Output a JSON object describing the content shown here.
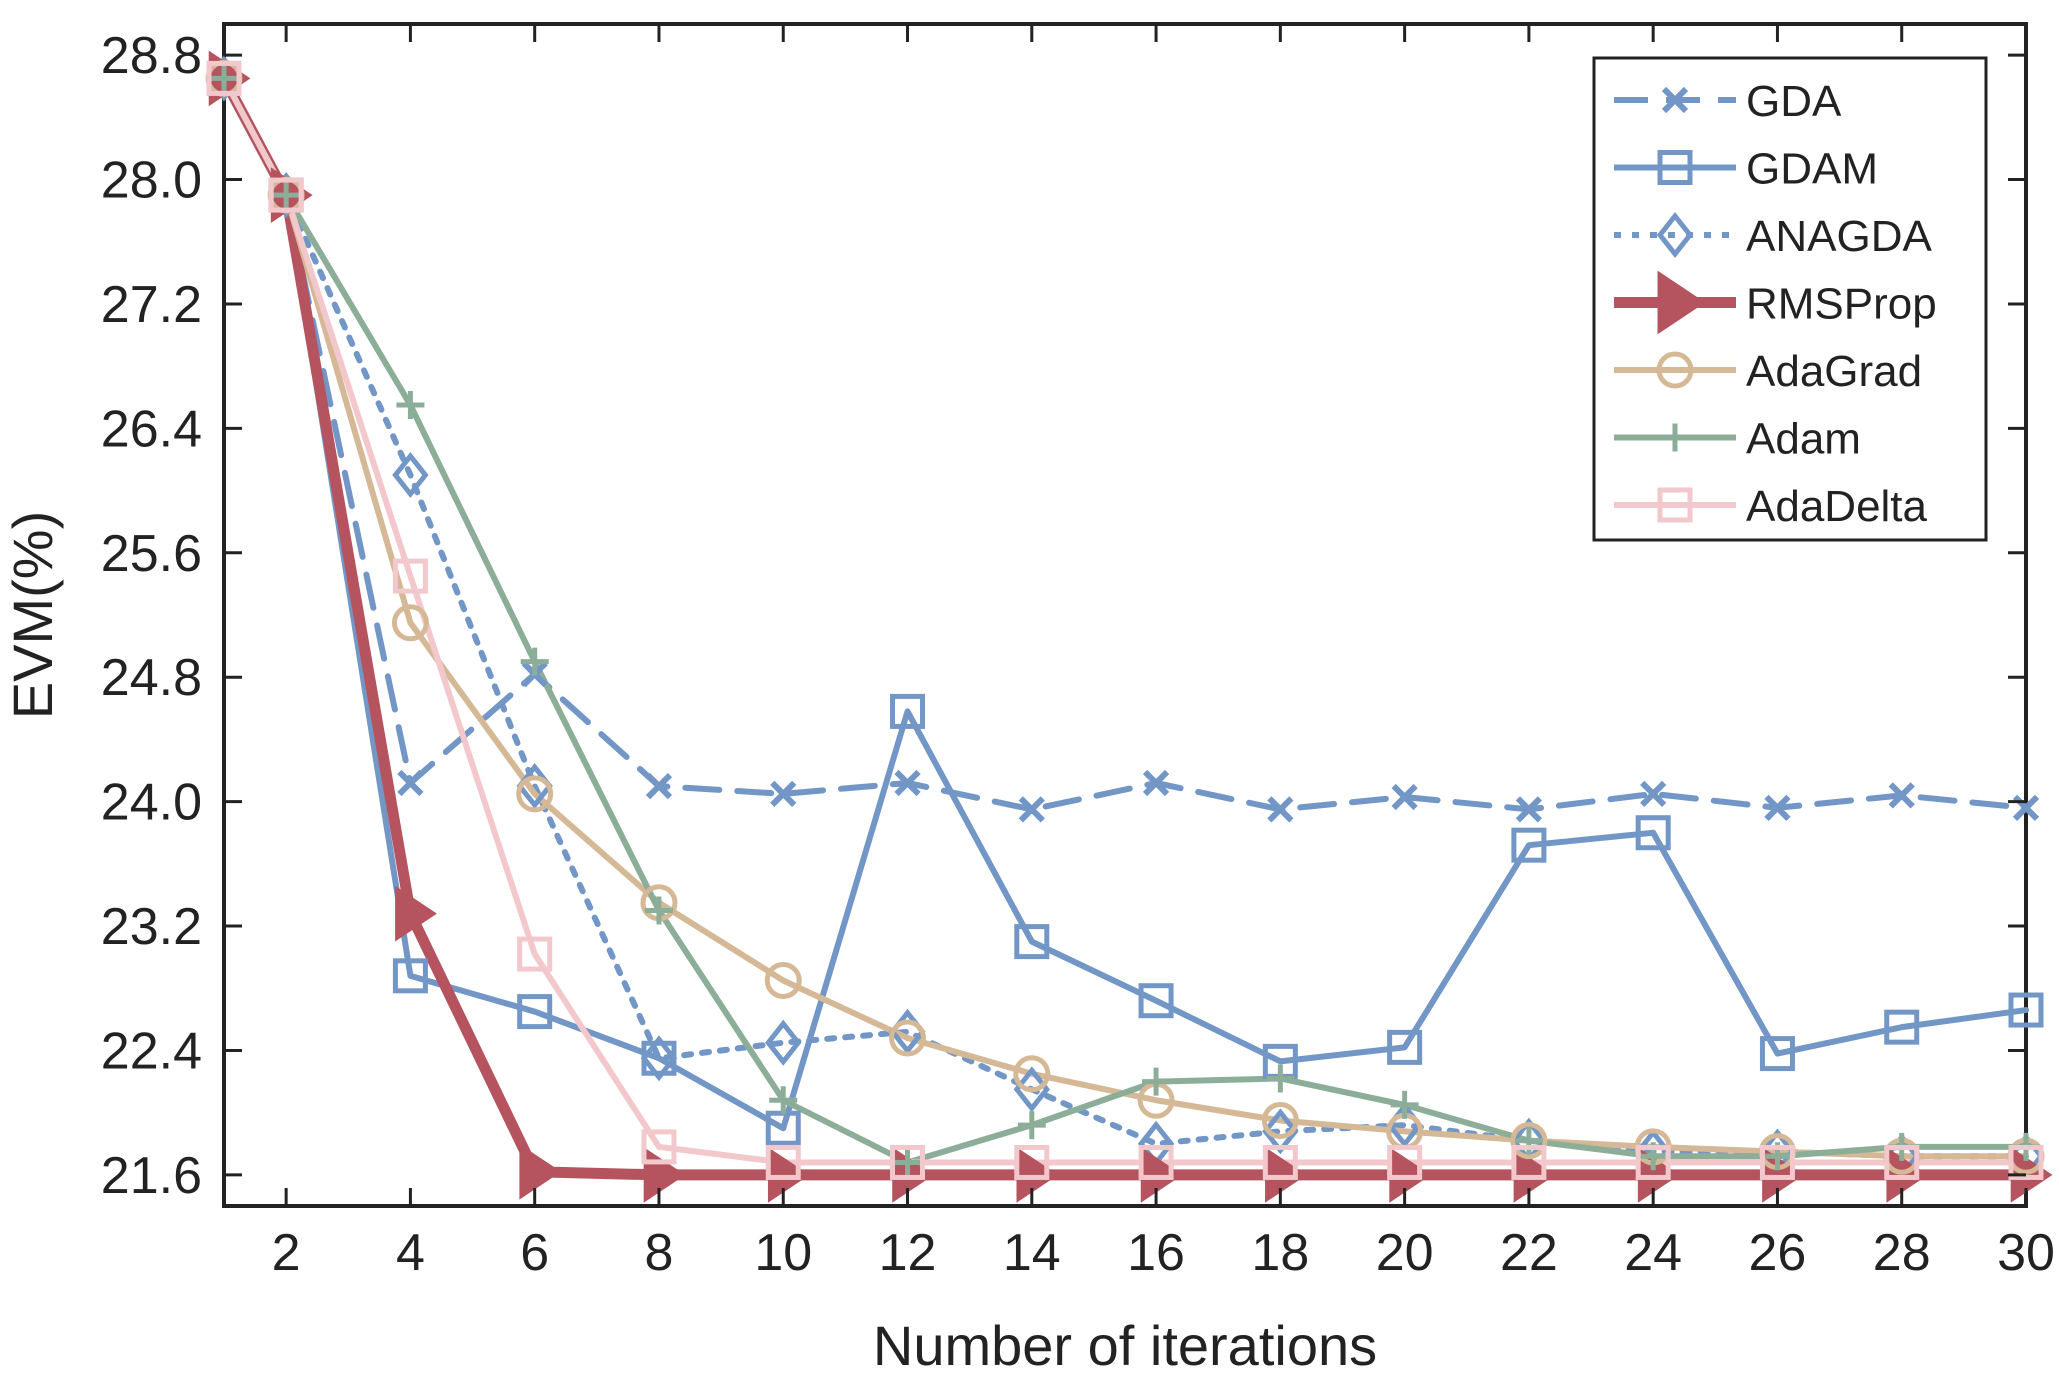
{
  "chart_data": {
    "type": "line",
    "xlabel": "Number of iterations",
    "ylabel": "EVM(%)",
    "xlim": [
      1,
      30
    ],
    "ylim": [
      21.4,
      29.0
    ],
    "xticks": [
      2,
      4,
      6,
      8,
      10,
      12,
      14,
      16,
      18,
      20,
      22,
      24,
      26,
      28,
      30
    ],
    "xtick_labels": [
      "2",
      "4",
      "6",
      "8",
      "10",
      "12",
      "14",
      "16",
      "18",
      "20",
      "22",
      "24",
      "26",
      "28",
      "30"
    ],
    "yticks": [
      21.6,
      22.4,
      23.2,
      24.0,
      24.8,
      25.6,
      26.4,
      27.2,
      28.0,
      28.8
    ],
    "ytick_labels": [
      "21.6",
      "22.4",
      "23.2",
      "24.0",
      "24.8",
      "25.6",
      "26.4",
      "27.2",
      "28.0",
      "28.8"
    ],
    "grid": false,
    "legend_position": "top-right",
    "x": [
      1,
      2,
      4,
      6,
      8,
      10,
      12,
      14,
      16,
      18,
      20,
      22,
      24,
      26,
      28,
      30
    ],
    "series": [
      {
        "name": "GDA",
        "color": "#7296c6",
        "line": "dashed",
        "marker": "x",
        "values": [
          28.65,
          27.9,
          24.12,
          24.82,
          24.1,
          24.05,
          24.12,
          23.95,
          24.12,
          23.95,
          24.03,
          23.95,
          24.05,
          23.96,
          24.04,
          23.96
        ]
      },
      {
        "name": "GDAM",
        "color": "#7296c6",
        "line": "solid",
        "marker": "square",
        "values": [
          28.65,
          27.9,
          22.88,
          22.65,
          22.35,
          21.9,
          24.58,
          23.1,
          22.72,
          22.33,
          22.42,
          23.72,
          23.8,
          22.38,
          22.55,
          22.66
        ]
      },
      {
        "name": "ANAGDA",
        "color": "#7296c6",
        "line": "dotted",
        "marker": "diamond",
        "values": [
          28.65,
          27.9,
          26.1,
          24.1,
          22.35,
          22.45,
          22.52,
          22.15,
          21.8,
          21.88,
          21.92,
          21.82,
          21.75,
          21.75,
          21.72,
          21.72
        ]
      },
      {
        "name": "RMSProp",
        "color": "#b5545e",
        "line": "solid",
        "marker": "triangle-right",
        "values": [
          28.65,
          27.9,
          23.28,
          21.62,
          21.6,
          21.6,
          21.6,
          21.6,
          21.6,
          21.6,
          21.6,
          21.6,
          21.6,
          21.6,
          21.6,
          21.6
        ]
      },
      {
        "name": "AdaGrad",
        "color": "#d5b896",
        "line": "solid",
        "marker": "circle",
        "values": [
          28.65,
          27.9,
          25.15,
          24.05,
          23.35,
          22.85,
          22.48,
          22.25,
          22.08,
          21.95,
          21.88,
          21.82,
          21.78,
          21.75,
          21.72,
          21.72
        ]
      },
      {
        "name": "Adam",
        "color": "#8cae99",
        "line": "solid",
        "marker": "plus",
        "values": [
          28.65,
          27.9,
          26.55,
          24.9,
          23.3,
          22.08,
          21.68,
          21.92,
          22.2,
          22.22,
          22.05,
          21.82,
          21.72,
          21.72,
          21.78,
          21.78
        ]
      },
      {
        "name": "AdaDelta",
        "color": "#f2c8cc",
        "line": "solid",
        "marker": "square",
        "values": [
          28.65,
          27.9,
          25.45,
          23.02,
          21.78,
          21.68,
          21.68,
          21.68,
          21.68,
          21.68,
          21.68,
          21.68,
          21.68,
          21.68,
          21.68,
          21.68
        ]
      }
    ]
  }
}
